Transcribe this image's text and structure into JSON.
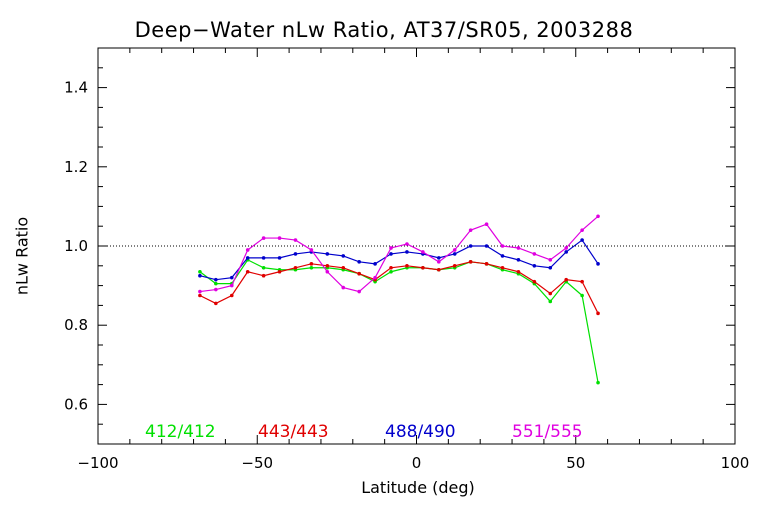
{
  "chart_data": {
    "type": "line",
    "title": "Deep−Water nLw Ratio, AT37/SR05, 2003288",
    "xlabel": "Latitude (deg)",
    "ylabel": "nLw Ratio",
    "xlim": [
      -100,
      100
    ],
    "ylim": [
      0.5,
      1.5
    ],
    "xticks": [
      -100,
      -50,
      0,
      50,
      100
    ],
    "xtick_labels": [
      "−100",
      "−50",
      "0",
      "50",
      "100"
    ],
    "yticks": [
      0.6,
      0.8,
      1.0,
      1.2,
      1.4
    ],
    "ytick_labels": [
      "0.6",
      "0.8",
      "1.0",
      "1.2",
      "1.4"
    ],
    "reference_line": 1.0,
    "grid": false,
    "legend": "bottom",
    "x": [
      -68,
      -63,
      -58,
      -53,
      -48,
      -43,
      -38,
      -33,
      -28,
      -23,
      -18,
      -13,
      -8,
      -3,
      2,
      7,
      12,
      17,
      22,
      27,
      32,
      37,
      42,
      47,
      52,
      57
    ],
    "series": [
      {
        "name": "412/412",
        "color": "#00e000",
        "values": [
          0.935,
          0.905,
          0.905,
          0.965,
          0.945,
          0.94,
          0.94,
          0.945,
          0.945,
          0.94,
          0.93,
          0.91,
          0.935,
          0.945,
          0.945,
          0.94,
          0.945,
          0.96,
          0.955,
          0.94,
          0.93,
          0.905,
          0.86,
          0.91,
          0.875,
          0.655
        ]
      },
      {
        "name": "443/443",
        "color": "#e00000",
        "values": [
          0.875,
          0.855,
          0.875,
          0.935,
          0.925,
          0.935,
          0.945,
          0.955,
          0.95,
          0.945,
          0.93,
          0.915,
          0.945,
          0.95,
          0.945,
          0.94,
          0.95,
          0.96,
          0.955,
          0.945,
          0.935,
          0.91,
          0.88,
          0.915,
          0.91,
          0.83
        ]
      },
      {
        "name": "488/490",
        "color": "#0000cc",
        "values": [
          0.925,
          0.915,
          0.92,
          0.97,
          0.97,
          0.97,
          0.98,
          0.985,
          0.98,
          0.975,
          0.96,
          0.955,
          0.98,
          0.985,
          0.98,
          0.97,
          0.98,
          1.0,
          1.0,
          0.975,
          0.965,
          0.95,
          0.945,
          0.985,
          1.015,
          0.955
        ]
      },
      {
        "name": "551/555",
        "color": "#e000e0",
        "values": [
          0.885,
          0.89,
          0.9,
          0.99,
          1.02,
          1.02,
          1.015,
          0.99,
          0.935,
          0.895,
          0.885,
          0.92,
          0.995,
          1.005,
          0.985,
          0.96,
          0.99,
          1.04,
          1.055,
          1.0,
          0.995,
          0.98,
          0.965,
          0.995,
          1.04,
          1.075
        ]
      }
    ]
  }
}
